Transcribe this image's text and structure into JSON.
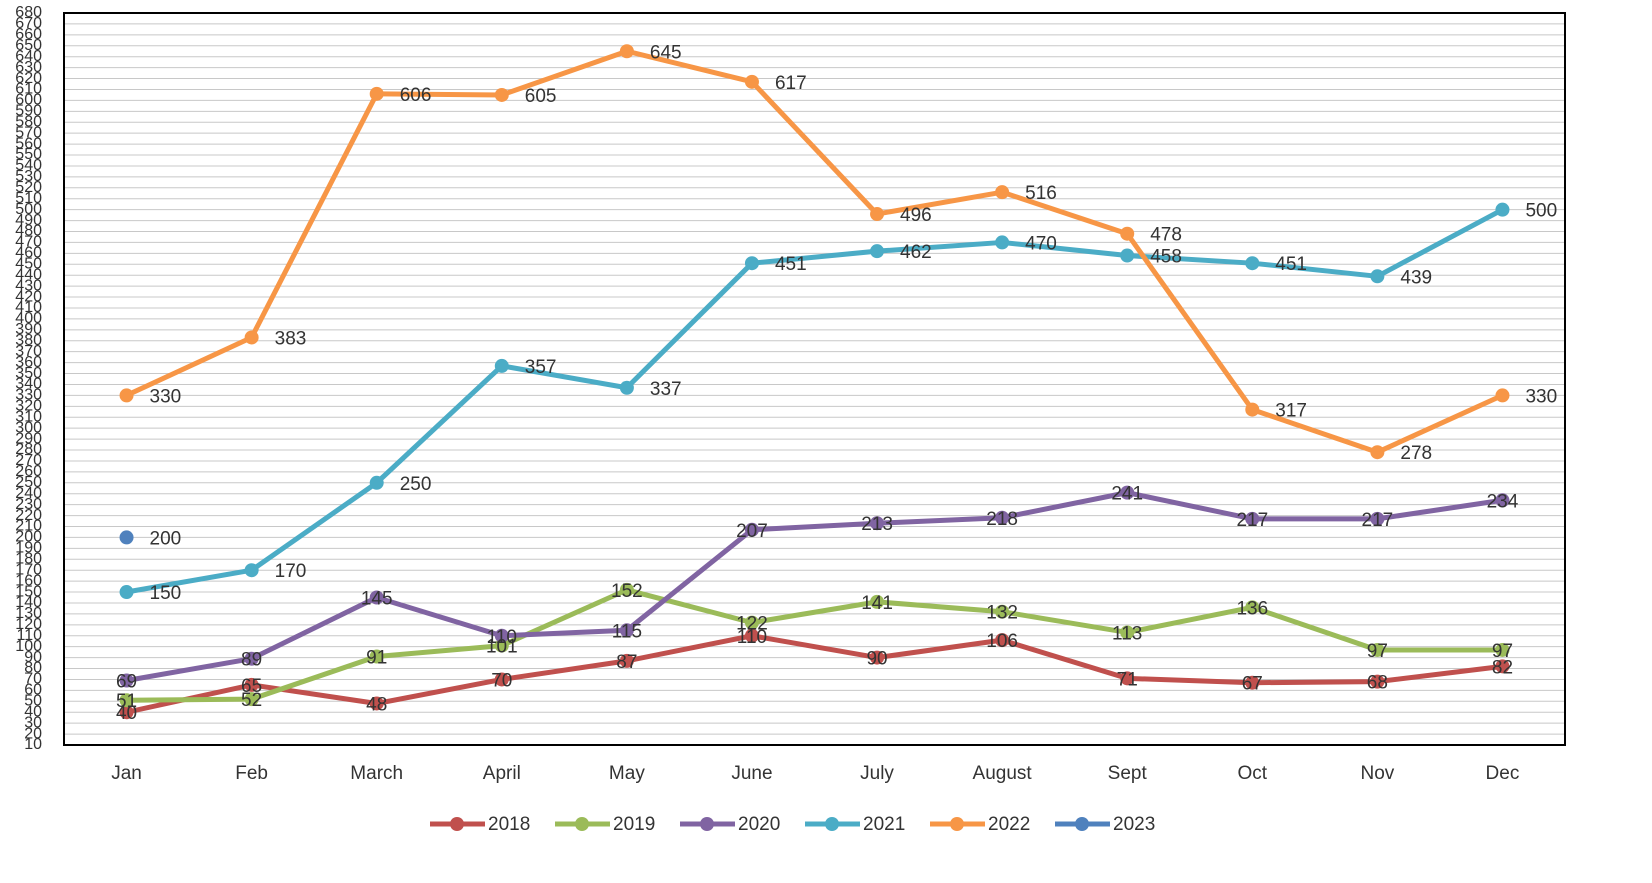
{
  "chart_data": {
    "type": "line",
    "categories": [
      "Jan",
      "Feb",
      "March",
      "April",
      "May",
      "June",
      "July",
      "August",
      "Sept",
      "Oct",
      "Nov",
      "Dec"
    ],
    "series": [
      {
        "name": "2018",
        "color": "#c0504d",
        "values": [
          40,
          65,
          48,
          70,
          87,
          110,
          90,
          106,
          71,
          67,
          68,
          82
        ]
      },
      {
        "name": "2019",
        "color": "#9bbb59",
        "values": [
          51,
          52,
          91,
          101,
          152,
          122,
          141,
          132,
          113,
          136,
          97,
          97
        ]
      },
      {
        "name": "2020",
        "color": "#8064a2",
        "values": [
          69,
          89,
          145,
          110,
          115,
          207,
          213,
          218,
          241,
          217,
          217,
          234
        ]
      },
      {
        "name": "2021",
        "color": "#4bacc6",
        "values": [
          150,
          170,
          250,
          357,
          337,
          451,
          462,
          470,
          458,
          451,
          439,
          500
        ]
      },
      {
        "name": "2022",
        "color": "#f79646",
        "values": [
          330,
          383,
          606,
          605,
          645,
          617,
          496,
          516,
          478,
          317,
          278,
          330
        ]
      },
      {
        "name": "2023",
        "color": "#4f81bd",
        "values": [
          200,
          null,
          null,
          null,
          null,
          null,
          null,
          null,
          null,
          null,
          null,
          null
        ]
      }
    ],
    "ylim": [
      10,
      680
    ],
    "yticks": [
      10,
      20,
      30,
      40,
      50,
      60,
      70,
      80,
      90,
      100,
      110,
      120,
      130,
      140,
      150,
      160,
      170,
      180,
      190,
      200,
      210,
      220,
      230,
      240,
      250,
      260,
      270,
      280,
      290,
      300,
      310,
      320,
      330,
      340,
      350,
      360,
      370,
      380,
      390,
      400,
      410,
      420,
      430,
      440,
      450,
      460,
      470,
      480,
      490,
      500,
      510,
      520,
      530,
      540,
      550,
      560,
      570,
      580,
      590,
      600,
      610,
      620,
      630,
      640,
      650,
      660,
      670,
      680
    ],
    "grid": true
  }
}
